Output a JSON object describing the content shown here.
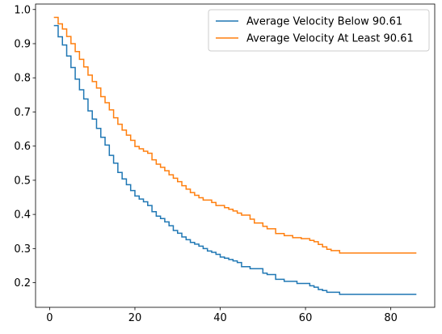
{
  "chart_data": {
    "type": "line",
    "step": true,
    "title": "",
    "xlabel": "",
    "ylabel": "",
    "xlim": [
      -3.3,
      90.3
    ],
    "ylim": [
      0.128,
      1.016
    ],
    "xticks": [
      0,
      20,
      40,
      60,
      80
    ],
    "yticks": [
      0.2,
      0.3,
      0.4,
      0.5,
      0.6,
      0.7,
      0.8,
      0.9,
      1.0
    ],
    "ytick_labels": [
      "0.2",
      "0.3",
      "0.4",
      "0.5",
      "0.6",
      "0.7",
      "0.8",
      "0.9",
      "1.0"
    ],
    "grid": false,
    "legend_position": "top-right",
    "series": [
      {
        "name": "Average Velocity Below 90.61",
        "color": "#1f77b4",
        "x": [
          1,
          2,
          3,
          4,
          5,
          6,
          7,
          8,
          9,
          10,
          11,
          12,
          13,
          14,
          15,
          16,
          17,
          18,
          19,
          20,
          21,
          22,
          23,
          24,
          25,
          26,
          27,
          28,
          29,
          30,
          31,
          32,
          33,
          34,
          35,
          36,
          37,
          38,
          39,
          40,
          41,
          42,
          43,
          44,
          45,
          47,
          50,
          51,
          53,
          55,
          58,
          60,
          61,
          62,
          63,
          64,
          65,
          68,
          86
        ],
        "y": [
          0.953,
          0.92,
          0.896,
          0.864,
          0.83,
          0.796,
          0.765,
          0.738,
          0.703,
          0.679,
          0.652,
          0.626,
          0.603,
          0.573,
          0.55,
          0.523,
          0.504,
          0.487,
          0.47,
          0.454,
          0.445,
          0.437,
          0.426,
          0.408,
          0.395,
          0.388,
          0.378,
          0.367,
          0.353,
          0.345,
          0.334,
          0.326,
          0.318,
          0.313,
          0.307,
          0.3,
          0.293,
          0.289,
          0.283,
          0.275,
          0.272,
          0.268,
          0.264,
          0.259,
          0.247,
          0.241,
          0.228,
          0.224,
          0.21,
          0.204,
          0.198,
          0.198,
          0.191,
          0.187,
          0.18,
          0.177,
          0.172,
          0.166,
          0.166
        ]
      },
      {
        "name": "Average Velocity At Least 90.61",
        "color": "#ff7f0e",
        "x": [
          1,
          2,
          3,
          4,
          5,
          6,
          7,
          8,
          9,
          10,
          11,
          12,
          13,
          14,
          15,
          16,
          17,
          18,
          19,
          20,
          21,
          22,
          23,
          24,
          25,
          26,
          27,
          28,
          29,
          30,
          31,
          32,
          33,
          34,
          35,
          36,
          38,
          39,
          41,
          42,
          43,
          44,
          45,
          47,
          48,
          50,
          51,
          53,
          55,
          57,
          59,
          61,
          62,
          63,
          64,
          65,
          66,
          68,
          86
        ],
        "y": [
          0.977,
          0.958,
          0.943,
          0.921,
          0.9,
          0.877,
          0.854,
          0.832,
          0.808,
          0.789,
          0.77,
          0.745,
          0.727,
          0.706,
          0.683,
          0.664,
          0.647,
          0.632,
          0.617,
          0.599,
          0.592,
          0.585,
          0.579,
          0.56,
          0.547,
          0.538,
          0.528,
          0.516,
          0.506,
          0.496,
          0.484,
          0.474,
          0.464,
          0.456,
          0.449,
          0.442,
          0.435,
          0.426,
          0.42,
          0.415,
          0.41,
          0.404,
          0.398,
          0.386,
          0.375,
          0.365,
          0.358,
          0.344,
          0.338,
          0.332,
          0.329,
          0.324,
          0.32,
          0.312,
          0.305,
          0.298,
          0.294,
          0.287,
          0.287
        ]
      }
    ]
  }
}
